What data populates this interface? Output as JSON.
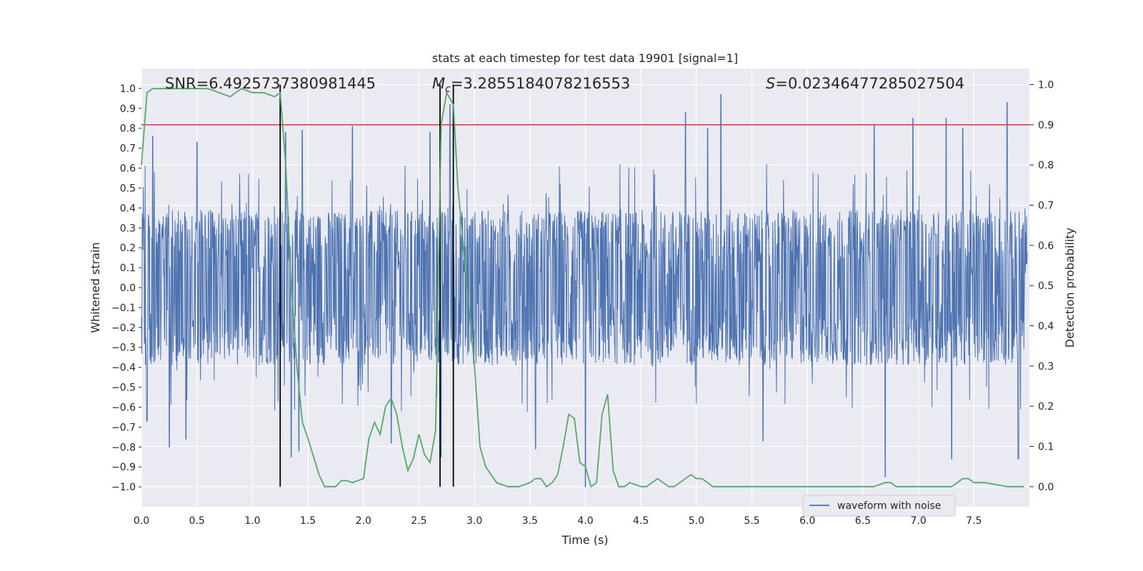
{
  "chart_data": {
    "type": "line",
    "title": "stats at each timestep for test data 19901 [signal=1]",
    "xlabel": "Time (s)",
    "ylabel": "Whitened strain",
    "y2label": "Detection probability",
    "xlim": [
      0.0,
      8.0
    ],
    "ylim": [
      -1.1,
      1.1
    ],
    "y2lim": [
      -0.05,
      1.04
    ],
    "xticks": [
      0.0,
      0.5,
      1.0,
      1.5,
      2.0,
      2.5,
      3.0,
      3.5,
      4.0,
      4.5,
      5.0,
      5.5,
      6.0,
      6.5,
      7.0,
      7.5
    ],
    "xtick_labels": [
      "0.0",
      "0.5",
      "1.0",
      "1.5",
      "2.0",
      "2.5",
      "3.0",
      "3.5",
      "4.0",
      "4.5",
      "5.0",
      "5.5",
      "6.0",
      "6.5",
      "7.0",
      "7.5"
    ],
    "yticks": [
      -1.0,
      -0.9,
      -0.8,
      -0.7,
      -0.6,
      -0.5,
      -0.4,
      -0.3,
      -0.2,
      -0.1,
      0.0,
      0.1,
      0.2,
      0.3,
      0.4,
      0.5,
      0.6,
      0.7,
      0.8,
      0.9,
      1.0
    ],
    "ytick_labels": [
      "−1.0",
      "−0.9",
      "−0.8",
      "−0.7",
      "−0.6",
      "−0.5",
      "−0.4",
      "−0.3",
      "−0.2",
      "−0.1",
      "0.0",
      "0.1",
      "0.2",
      "0.3",
      "0.4",
      "0.5",
      "0.6",
      "0.7",
      "0.8",
      "0.9",
      "1.0"
    ],
    "y2ticks": [
      0.0,
      0.1,
      0.2,
      0.3,
      0.4,
      0.5,
      0.6,
      0.7,
      0.8,
      0.9,
      1.0
    ],
    "y2tick_labels": [
      "0.0",
      "0.1",
      "0.2",
      "0.3",
      "0.4",
      "0.5",
      "0.6",
      "0.7",
      "0.8",
      "0.9",
      "1.0"
    ],
    "annotations": {
      "snr": "SNR=6.4925737380981445",
      "mc_symbol": "M",
      "mc_subscript": "c",
      "mc_value": "=3.2855184078216553",
      "s_symbol": "S",
      "s_value": "=0.02346477285027504"
    },
    "threshold": {
      "value": 0.9,
      "axis": "y2",
      "color": "#c44e52"
    },
    "vlines": [
      1.25,
      2.69,
      2.81
    ],
    "series": [
      {
        "name": "waveform with noise",
        "axis": "y1",
        "color": "#4c72b0",
        "kind": "noise",
        "envelope": 0.39,
        "spikes": [
          [
            0.1,
            0.76
          ],
          [
            0.5,
            0.73
          ],
          [
            1.3,
            0.78
          ],
          [
            1.45,
            0.79
          ],
          [
            1.9,
            0.81
          ],
          [
            2.6,
            0.78
          ],
          [
            2.78,
            0.92
          ],
          [
            4.9,
            0.88
          ],
          [
            5.1,
            0.8
          ],
          [
            5.22,
            0.97
          ],
          [
            6.6,
            0.82
          ],
          [
            6.95,
            0.85
          ],
          [
            7.25,
            0.85
          ],
          [
            7.4,
            0.8
          ],
          [
            7.8,
            0.93
          ],
          [
            0.25,
            -0.8
          ],
          [
            0.4,
            -0.76
          ],
          [
            1.35,
            -0.85
          ],
          [
            1.42,
            -0.82
          ],
          [
            2.7,
            -0.85
          ],
          [
            4.0,
            -1.0
          ],
          [
            3.55,
            -0.81
          ],
          [
            5.6,
            -0.77
          ],
          [
            6.7,
            -0.95
          ],
          [
            7.3,
            -0.86
          ],
          [
            7.9,
            -0.86
          ],
          [
            0.05,
            -0.67
          ],
          [
            2.25,
            -0.78
          ]
        ]
      },
      {
        "name": "detection probability",
        "axis": "y2",
        "color": "#55a868",
        "x": [
          0.0,
          0.05,
          0.1,
          0.2,
          0.4,
          0.6,
          0.7,
          0.8,
          0.85,
          0.9,
          1.0,
          1.1,
          1.2,
          1.25,
          1.3,
          1.35,
          1.4,
          1.45,
          1.5,
          1.6,
          1.65,
          1.7,
          1.75,
          1.8,
          1.85,
          1.9,
          2.0,
          2.05,
          2.1,
          2.15,
          2.2,
          2.25,
          2.3,
          2.35,
          2.4,
          2.45,
          2.5,
          2.55,
          2.6,
          2.65,
          2.7,
          2.75,
          2.81,
          2.85,
          2.9,
          3.0,
          3.05,
          3.1,
          3.2,
          3.3,
          3.4,
          3.5,
          3.55,
          3.6,
          3.65,
          3.7,
          3.75,
          3.8,
          3.85,
          3.9,
          3.95,
          4.0,
          4.05,
          4.1,
          4.15,
          4.2,
          4.25,
          4.3,
          4.35,
          4.4,
          4.5,
          4.55,
          4.6,
          4.65,
          4.7,
          4.75,
          4.8,
          4.85,
          4.9,
          4.95,
          5.0,
          5.05,
          5.1,
          5.15,
          5.2,
          5.25,
          5.3,
          5.4,
          5.6,
          5.8,
          6.0,
          6.2,
          6.4,
          6.5,
          6.6,
          6.7,
          6.75,
          6.8,
          6.9,
          7.0,
          7.2,
          7.3,
          7.4,
          7.45,
          7.5,
          7.6,
          7.8,
          7.95
        ],
        "values": [
          0.8,
          0.98,
          0.99,
          0.99,
          0.99,
          0.99,
          0.98,
          0.97,
          0.98,
          0.99,
          0.98,
          0.98,
          0.97,
          0.98,
          0.8,
          0.5,
          0.3,
          0.16,
          0.12,
          0.03,
          0.0,
          0.0,
          0.0,
          0.015,
          0.015,
          0.01,
          0.02,
          0.12,
          0.16,
          0.13,
          0.2,
          0.22,
          0.18,
          0.1,
          0.04,
          0.07,
          0.13,
          0.08,
          0.06,
          0.14,
          0.9,
          0.98,
          0.95,
          0.75,
          0.6,
          0.3,
          0.1,
          0.05,
          0.01,
          0.0,
          0.0,
          0.01,
          0.02,
          0.02,
          0.0,
          0.01,
          0.03,
          0.1,
          0.18,
          0.17,
          0.06,
          0.05,
          0.0,
          0.01,
          0.18,
          0.23,
          0.04,
          0.0,
          0.0,
          0.01,
          0.0,
          0.0,
          0.01,
          0.02,
          0.01,
          0.0,
          0.0,
          0.01,
          0.02,
          0.03,
          0.02,
          0.02,
          0.01,
          0.0,
          0.0,
          0.0,
          0.0,
          0.0,
          0.0,
          0.0,
          0.0,
          0.0,
          0.0,
          0.0,
          0.0,
          0.01,
          0.01,
          0.0,
          0.0,
          0.0,
          0.0,
          0.0,
          0.02,
          0.02,
          0.01,
          0.01,
          0.0,
          0.0
        ]
      }
    ],
    "legend": {
      "position": "bottom-right",
      "entries": [
        "waveform with noise"
      ]
    }
  }
}
